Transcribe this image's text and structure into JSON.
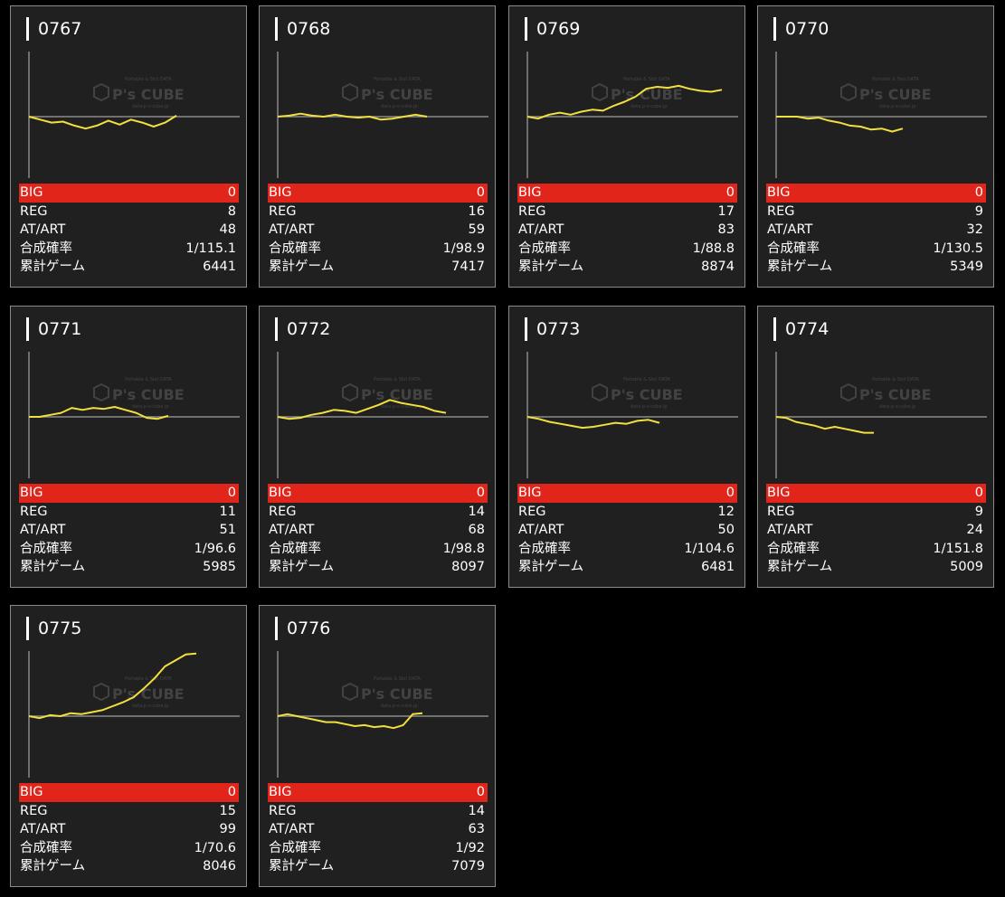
{
  "labels": {
    "big": "BIG",
    "reg": "REG",
    "at": "AT/ART",
    "rate": "合成確率",
    "games": "累計ゲーム"
  },
  "watermark": {
    "logo": "P's CUBE",
    "tagline_top": "Portable & Slot DATA",
    "tagline_bottom": "data.p-s-cube.jp"
  },
  "colors": {
    "big_bar": "#e1251b",
    "line": "#f2e040",
    "card_bg": "#202020",
    "card_border": "#8a8a8a",
    "baseline": "#8a8a8a"
  },
  "machines": [
    {
      "id": "0767",
      "big": "0",
      "reg": "8",
      "at": "48",
      "rate": "1/115.1",
      "games": "6441",
      "trend": [
        0,
        -3,
        -6,
        -5,
        -9,
        -12,
        -9,
        -4,
        -8,
        -3,
        -6,
        -10,
        -6,
        1
      ]
    },
    {
      "id": "0768",
      "big": "0",
      "reg": "16",
      "at": "59",
      "rate": "1/98.9",
      "games": "7417",
      "trend": [
        0,
        1,
        3,
        1,
        0,
        2,
        0,
        -1,
        0,
        -3,
        -2,
        0,
        2,
        0
      ]
    },
    {
      "id": "0769",
      "big": "0",
      "reg": "17",
      "at": "83",
      "rate": "1/88.8",
      "games": "8874",
      "trend": [
        0,
        -2,
        2,
        4,
        2,
        5,
        7,
        6,
        11,
        15,
        20,
        28,
        30,
        29,
        31,
        28,
        26,
        25,
        27
      ]
    },
    {
      "id": "0770",
      "big": "0",
      "reg": "9",
      "at": "32",
      "rate": "1/130.5",
      "games": "5349",
      "trend": [
        0,
        0,
        0,
        -2,
        -1,
        -4,
        -6,
        -9,
        -10,
        -13,
        -12,
        -15,
        -12
      ]
    },
    {
      "id": "0771",
      "big": "0",
      "reg": "11",
      "at": "51",
      "rate": "1/96.6",
      "games": "5985",
      "trend": [
        0,
        0,
        2,
        4,
        9,
        7,
        9,
        8,
        10,
        7,
        4,
        -1,
        -2,
        1
      ]
    },
    {
      "id": "0772",
      "big": "0",
      "reg": "14",
      "at": "68",
      "rate": "1/98.8",
      "games": "8097",
      "trend": [
        0,
        -2,
        -1,
        2,
        4,
        7,
        6,
        4,
        8,
        12,
        17,
        14,
        12,
        10,
        6,
        4
      ]
    },
    {
      "id": "0773",
      "big": "0",
      "reg": "12",
      "at": "50",
      "rate": "1/104.6",
      "games": "6481",
      "trend": [
        0,
        -2,
        -5,
        -7,
        -9,
        -11,
        -10,
        -8,
        -6,
        -7,
        -4,
        -3,
        -6
      ]
    },
    {
      "id": "0774",
      "big": "0",
      "reg": "9",
      "at": "24",
      "rate": "1/151.8",
      "games": "5009",
      "trend": [
        0,
        -1,
        -5,
        -7,
        -9,
        -12,
        -10,
        -12,
        -14,
        -16,
        -16
      ]
    },
    {
      "id": "0775",
      "big": "0",
      "reg": "15",
      "at": "99",
      "rate": "1/70.6",
      "games": "8046",
      "trend": [
        0,
        -2,
        1,
        0,
        3,
        2,
        4,
        6,
        10,
        14,
        19,
        28,
        38,
        50,
        56,
        62,
        63
      ]
    },
    {
      "id": "0776",
      "big": "0",
      "reg": "14",
      "at": "63",
      "rate": "1/92",
      "games": "7079",
      "trend": [
        0,
        2,
        0,
        -2,
        -4,
        -6,
        -6,
        -8,
        -10,
        -9,
        -11,
        -10,
        -12,
        -9,
        2,
        3
      ]
    }
  ]
}
